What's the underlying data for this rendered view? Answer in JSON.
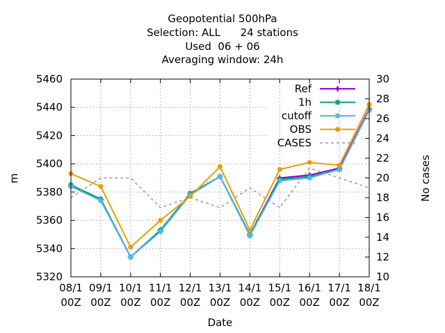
{
  "chart_data": {
    "type": "line",
    "title_lines": [
      "Geopotential 500hPa",
      "Selection: ALL      24 stations",
      "Used  06 + 06",
      "Averaging window: 24h"
    ],
    "xlabel": "Date",
    "ylabel": "m",
    "y2label": "No cases",
    "categories": [
      "08/1\n00Z",
      "09/1\n00Z",
      "10/1\n00Z",
      "11/1\n00Z",
      "12/1\n00Z",
      "13/1\n00Z",
      "14/1\n00Z",
      "15/1\n00Z",
      "16/1\n00Z",
      "17/1\n00Z",
      "18/1\n00Z"
    ],
    "ylim": [
      5320,
      5460
    ],
    "yticks": [
      5320,
      5340,
      5360,
      5380,
      5400,
      5420,
      5440,
      5460
    ],
    "y2lim": [
      10,
      30
    ],
    "y2ticks": [
      10,
      12,
      14,
      16,
      18,
      20,
      22,
      24,
      26,
      28,
      30
    ],
    "grid": true,
    "legend_position": "top-right",
    "series": [
      {
        "name": "Ref",
        "axis": "y",
        "color": "#9400d3",
        "marker": "plus",
        "dash": false,
        "values": [
          5385,
          5375,
          5334,
          5353,
          5379,
          5391,
          5350,
          5390,
          5392,
          5397,
          5439
        ]
      },
      {
        "name": "1h",
        "axis": "y",
        "color": "#009e73",
        "marker": "star",
        "dash": false,
        "values": [
          5385,
          5375,
          5334,
          5353,
          5379,
          5391,
          5350,
          5389,
          5391,
          5396,
          5438
        ]
      },
      {
        "name": "cutoff",
        "axis": "y",
        "color": "#56b4e9",
        "marker": "star",
        "dash": false,
        "values": [
          5384,
          5374,
          5334,
          5352,
          5378,
          5391,
          5349,
          5388,
          5390,
          5396,
          5438
        ]
      },
      {
        "name": "OBS",
        "axis": "y",
        "color": "#e69f00",
        "marker": "dot",
        "dash": false,
        "values": [
          5393,
          5384,
          5341,
          5360,
          5377,
          5398,
          5353,
          5396,
          5401,
          5399,
          5442
        ]
      },
      {
        "name": "CASES",
        "axis": "y2",
        "color": "#999999",
        "marker": "none",
        "dash": true,
        "values": [
          18,
          20,
          20,
          17,
          18,
          17,
          19,
          17,
          21,
          20,
          19
        ]
      }
    ]
  }
}
